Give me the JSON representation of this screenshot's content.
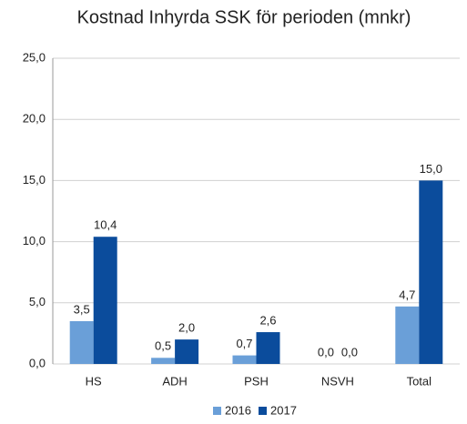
{
  "chart_data": {
    "type": "bar",
    "title": "Kostnad Inhyrda SSK för perioden (mnkr)",
    "categories": [
      "HS",
      "ADH",
      "PSH",
      "NSVH",
      "Total"
    ],
    "series": [
      {
        "name": "2016",
        "color": "#6a9fd8",
        "values": [
          3.5,
          0.5,
          0.7,
          0.0,
          4.7
        ],
        "value_labels": [
          "3,5",
          "0,5",
          "0,7",
          "0,0",
          "4,7"
        ]
      },
      {
        "name": "2017",
        "color": "#0b4c9c",
        "values": [
          10.4,
          2.0,
          2.6,
          0.0,
          15.0
        ],
        "value_labels": [
          "10,4",
          "2,0",
          "2,6",
          "0,0",
          "15,0"
        ]
      }
    ],
    "ylim": [
      0,
      25
    ],
    "yticks": [
      {
        "value": 0,
        "label": "0,0"
      },
      {
        "value": 5,
        "label": "5,0"
      },
      {
        "value": 10,
        "label": "10,0"
      },
      {
        "value": 15,
        "label": "15,0"
      },
      {
        "value": 20,
        "label": "20,0"
      },
      {
        "value": 25,
        "label": "25,0"
      }
    ],
    "grid": true,
    "legend": "bottom"
  }
}
